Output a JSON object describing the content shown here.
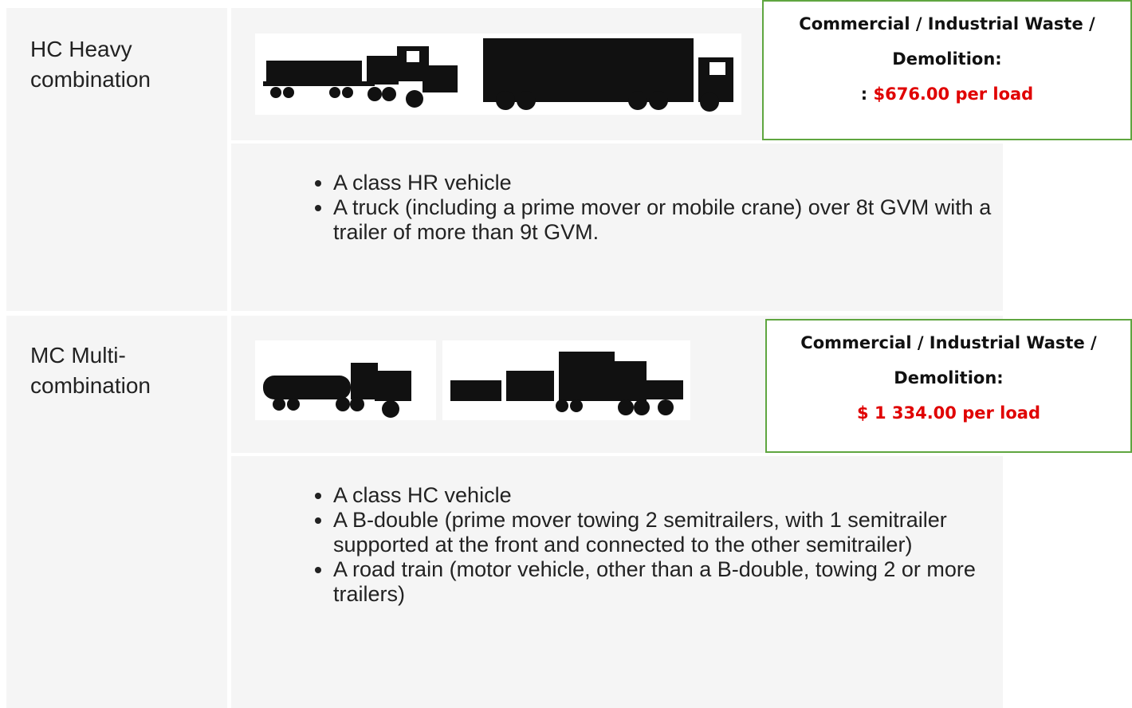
{
  "rows": [
    {
      "label": "HC Heavy combination",
      "box": {
        "heading": "Commercial / Industrial Waste / Demolition:",
        "price_prefix": ": ",
        "price": "$676.00 per load"
      },
      "bullets": [
        "A class HR vehicle",
        "A truck (including a prime mover or mobile crane) over 8t GVM with a trailer of more than 9t GVM."
      ]
    },
    {
      "label": "MC Multi-combination",
      "box": {
        "heading": "Commercial / Industrial Waste / Demolition:",
        "price": "$ 1 334.00 per load"
      },
      "bullets": [
        "A class HC vehicle",
        "A B-double (prime mover towing 2 semitrailers, with 1 semitrailer supported at the front and connected to the other semitrailer)",
        "A road train (motor vehicle, other than a B-double, towing 2 or more trailers)"
      ]
    }
  ]
}
